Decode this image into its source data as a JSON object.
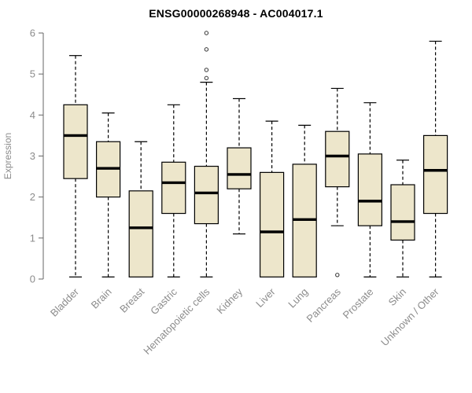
{
  "chart_data": {
    "type": "boxplot",
    "title": "ENSG00000268948 - AC004017.1",
    "xlabel": "",
    "ylabel": "Expression",
    "ylim": [
      0,
      6
    ],
    "yticks": [
      0,
      1,
      2,
      3,
      4,
      5,
      6
    ],
    "grid": false,
    "legend": false,
    "box_fill": "#EDE6CB",
    "box_stroke": "#000000",
    "axis_color": "#666666",
    "label_color": "#8c8c8c",
    "categories": [
      "Bladder",
      "Brain",
      "Breast",
      "Gastric",
      "Hematopoietic cells",
      "Kidney",
      "Liver",
      "Lung",
      "Pancreas",
      "Prostate",
      "Skin",
      "Unknown / Other"
    ],
    "series": [
      {
        "category": "Bladder",
        "low": 0.05,
        "q1": 2.45,
        "median": 3.5,
        "q3": 4.25,
        "high": 5.45,
        "outliers": []
      },
      {
        "category": "Brain",
        "low": 0.05,
        "q1": 2.0,
        "median": 2.7,
        "q3": 3.35,
        "high": 4.05,
        "outliers": []
      },
      {
        "category": "Breast",
        "low": 0.05,
        "q1": 0.05,
        "median": 1.25,
        "q3": 2.15,
        "high": 3.35,
        "outliers": []
      },
      {
        "category": "Gastric",
        "low": 0.05,
        "q1": 1.6,
        "median": 2.35,
        "q3": 2.85,
        "high": 4.25,
        "outliers": []
      },
      {
        "category": "Hematopoietic cells",
        "low": 0.05,
        "q1": 1.35,
        "median": 2.1,
        "q3": 2.75,
        "high": 4.8,
        "outliers": [
          6.0,
          5.6,
          5.1,
          4.9
        ]
      },
      {
        "category": "Kidney",
        "low": 1.1,
        "q1": 2.2,
        "median": 2.55,
        "q3": 3.2,
        "high": 4.4,
        "outliers": []
      },
      {
        "category": "Liver",
        "low": 0.05,
        "q1": 0.05,
        "median": 1.15,
        "q3": 2.6,
        "high": 3.85,
        "outliers": []
      },
      {
        "category": "Lung",
        "low": 0.05,
        "q1": 0.05,
        "median": 1.45,
        "q3": 2.8,
        "high": 3.75,
        "outliers": []
      },
      {
        "category": "Pancreas",
        "low": 1.3,
        "q1": 2.25,
        "median": 3.0,
        "q3": 3.6,
        "high": 4.65,
        "outliers": [
          0.1
        ]
      },
      {
        "category": "Prostate",
        "low": 0.05,
        "q1": 1.3,
        "median": 1.9,
        "q3": 3.05,
        "high": 4.3,
        "outliers": []
      },
      {
        "category": "Skin",
        "low": 0.05,
        "q1": 0.95,
        "median": 1.4,
        "q3": 2.3,
        "high": 2.9,
        "outliers": []
      },
      {
        "category": "Unknown / Other",
        "low": 0.05,
        "q1": 1.6,
        "median": 2.65,
        "q3": 3.5,
        "high": 5.8,
        "outliers": []
      }
    ]
  }
}
